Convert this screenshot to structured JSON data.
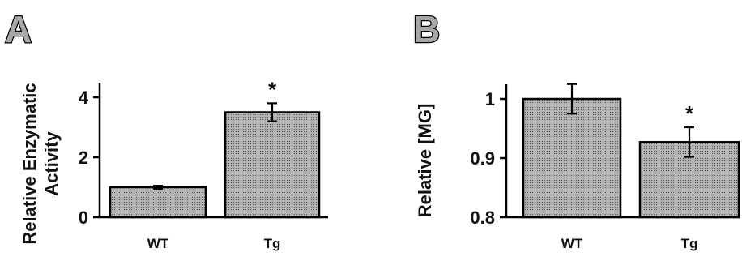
{
  "chart_data": [
    {
      "type": "bar",
      "panel_label": "A",
      "ylabel_lines": [
        "Relative Enzymatic",
        "Activity"
      ],
      "categories": [
        "WT",
        "Tg"
      ],
      "values": [
        1.0,
        3.5
      ],
      "errors": [
        0.05,
        0.3
      ],
      "significance": [
        "",
        "*"
      ],
      "ylim": [
        0,
        4
      ],
      "yticks": [
        "0",
        "2",
        "4"
      ],
      "bar_color": "#b4b4b4"
    },
    {
      "type": "bar",
      "panel_label": "B",
      "ylabel_lines": [
        "Relative [MG]"
      ],
      "categories": [
        "WT",
        "Tg"
      ],
      "values": [
        1.0,
        0.927
      ],
      "errors": [
        0.025,
        0.025
      ],
      "significance": [
        "",
        "*"
      ],
      "ylim": [
        0.8,
        1.0
      ],
      "yticks": [
        "0.8",
        "0.9",
        "1"
      ],
      "bar_color": "#b4b4b4"
    }
  ]
}
